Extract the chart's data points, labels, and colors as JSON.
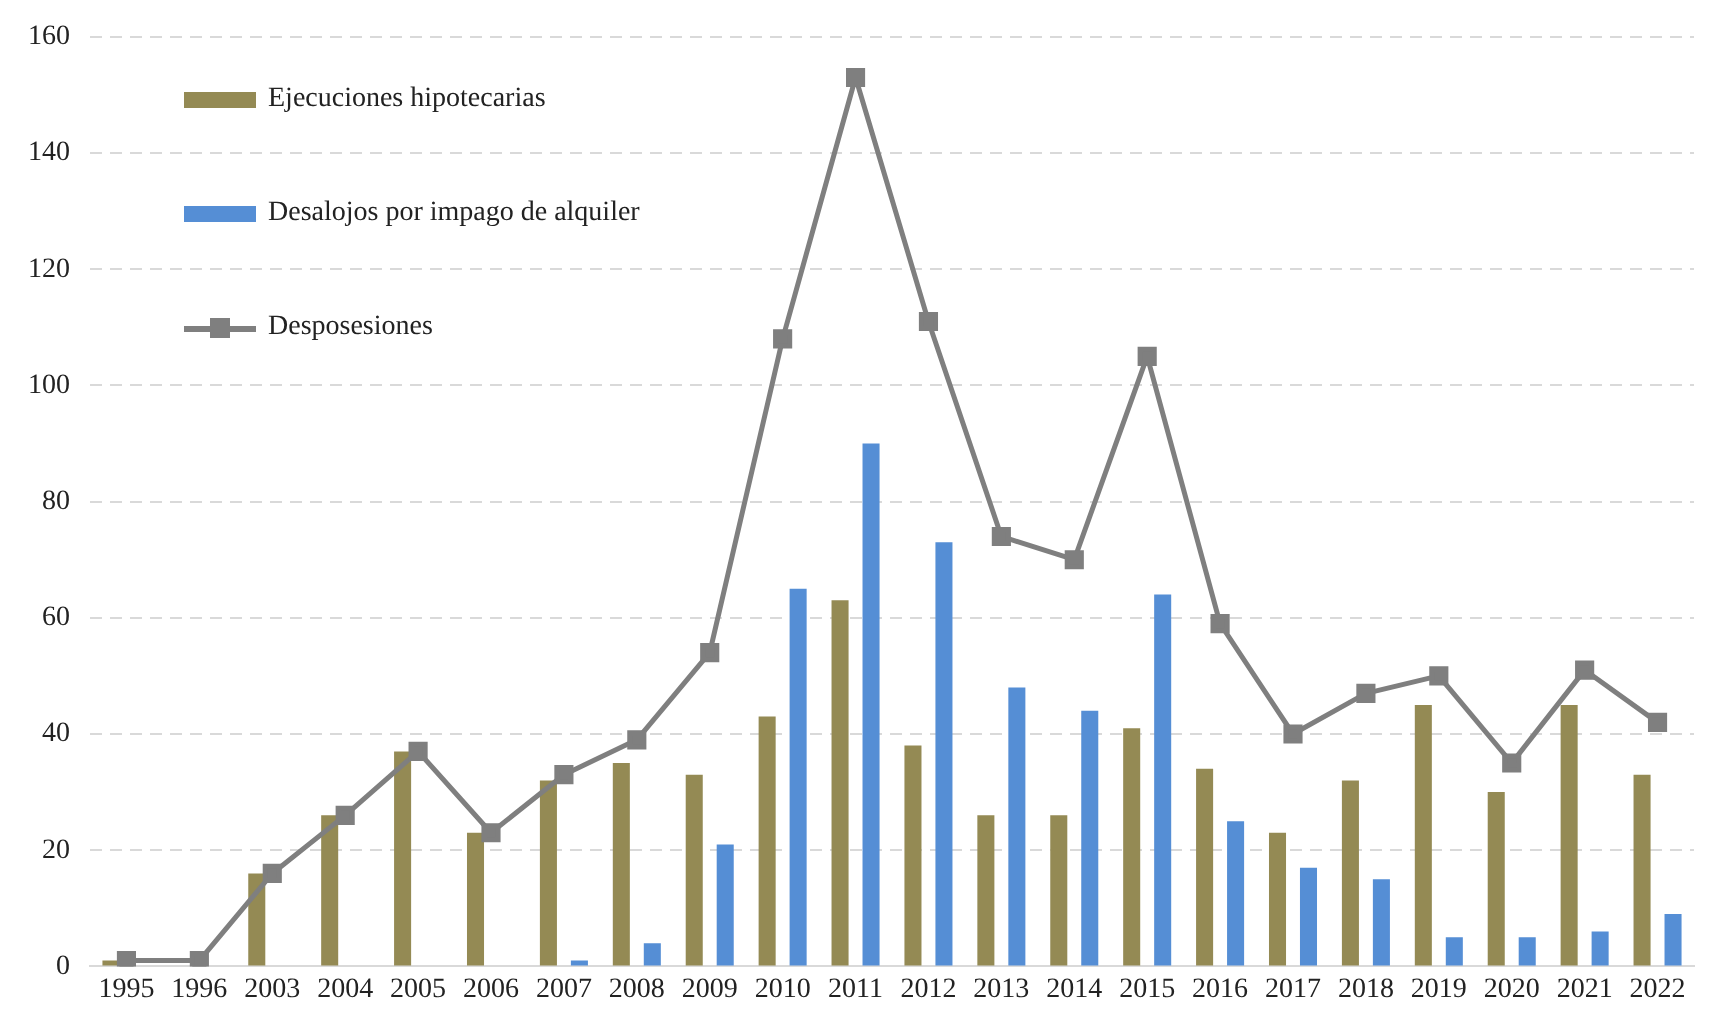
{
  "chart_data": {
    "type": "bar",
    "categories": [
      "1995",
      "1996",
      "2003",
      "2004",
      "2005",
      "2006",
      "2007",
      "2008",
      "2009",
      "2010",
      "2011",
      "2012",
      "2013",
      "2014",
      "2015",
      "2016",
      "2017",
      "2018",
      "2019",
      "2020",
      "2021",
      "2022"
    ],
    "series": [
      {
        "name": "Ejecuciones hipotecarias",
        "color": "#948a54",
        "values": [
          1,
          null,
          16,
          26,
          37,
          23,
          32,
          35,
          33,
          43,
          63,
          38,
          26,
          26,
          41,
          34,
          23,
          32,
          45,
          30,
          45,
          33
        ]
      },
      {
        "name": "Desalojos por impago de alquiler",
        "color": "#558ed5",
        "values": [
          0,
          0,
          0,
          0,
          0,
          0,
          1,
          4,
          21,
          65,
          90,
          73,
          48,
          44,
          64,
          25,
          17,
          15,
          5,
          5,
          6,
          9
        ]
      },
      {
        "name": "Desposesiones",
        "type": "line",
        "color": "#7f7f7f",
        "marker": "square",
        "values": [
          1,
          1,
          16,
          26,
          37,
          23,
          33,
          39,
          54,
          108,
          153,
          111,
          74,
          70,
          105,
          59,
          40,
          47,
          50,
          35,
          51,
          42
        ]
      }
    ],
    "ylim": [
      0,
      160
    ],
    "yticks": [
      0,
      20,
      40,
      60,
      80,
      100,
      120,
      140,
      160
    ],
    "grid": "y",
    "legend": "top left"
  }
}
